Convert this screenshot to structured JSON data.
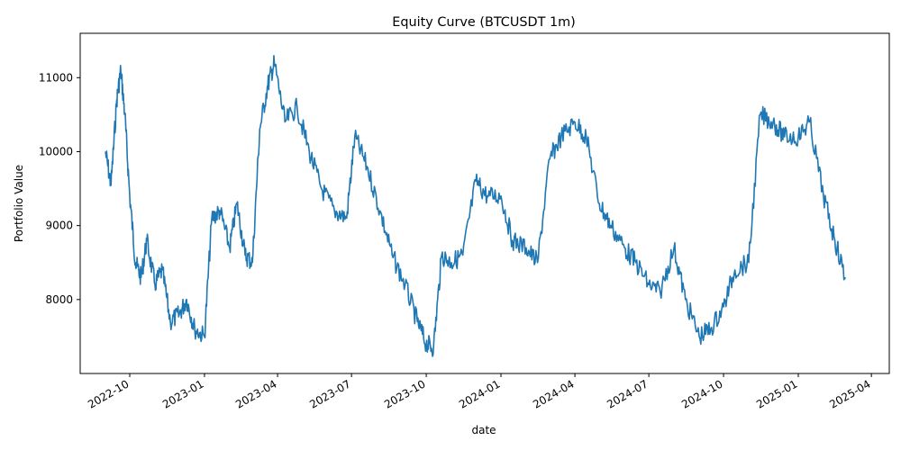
{
  "chart_data": {
    "type": "line",
    "title": "Equity Curve (BTCUSDT 1m)",
    "xlabel": "date",
    "ylabel": "Portfolio Value",
    "grid": false,
    "legend": "none",
    "color": "#1f77b4",
    "xlim": [
      "2022-08-01",
      "2025-04-23"
    ],
    "ylim": [
      7000,
      11600
    ],
    "x_ticks": [
      "2022-10",
      "2023-01",
      "2023-04",
      "2023-07",
      "2023-10",
      "2024-01",
      "2024-04",
      "2024-07",
      "2024-10",
      "2025-01",
      "2025-04"
    ],
    "y_ticks": [
      8000,
      9000,
      10000,
      11000
    ],
    "y_tick_labels": [
      "8000",
      "9000",
      "10000",
      "11000"
    ],
    "series": [
      {
        "x": [
          "2022-09-01",
          "2022-09-08",
          "2022-09-15",
          "2022-09-20",
          "2022-09-25",
          "2022-10-01",
          "2022-10-08",
          "2022-10-15",
          "2022-10-22",
          "2022-11-01",
          "2022-11-10",
          "2022-11-20",
          "2022-12-01",
          "2022-12-10",
          "2022-12-20",
          "2023-01-01",
          "2023-01-10",
          "2023-01-20",
          "2023-02-01",
          "2023-02-10",
          "2023-02-20",
          "2023-03-01",
          "2023-03-10",
          "2023-03-20",
          "2023-03-28",
          "2023-04-10",
          "2023-04-25",
          "2023-05-10",
          "2023-05-25",
          "2023-06-10",
          "2023-06-25",
          "2023-07-05",
          "2023-07-20",
          "2023-08-05",
          "2023-08-20",
          "2023-09-05",
          "2023-09-20",
          "2023-10-01",
          "2023-10-10",
          "2023-10-20",
          "2023-11-01",
          "2023-11-15",
          "2023-12-01",
          "2023-12-15",
          "2024-01-01",
          "2024-01-15",
          "2024-02-01",
          "2024-02-15",
          "2024-03-01",
          "2024-03-15",
          "2024-04-01",
          "2024-04-15",
          "2024-05-01",
          "2024-05-15",
          "2024-06-01",
          "2024-06-15",
          "2024-07-01",
          "2024-07-15",
          "2024-08-01",
          "2024-08-15",
          "2024-09-01",
          "2024-09-15",
          "2024-10-01",
          "2024-10-15",
          "2024-11-01",
          "2024-11-15",
          "2024-12-01",
          "2024-12-15",
          "2025-01-01",
          "2025-01-15",
          "2025-02-01",
          "2025-02-15",
          "2025-02-28"
        ],
        "y": [
          10000,
          9550,
          10700,
          11100,
          10500,
          9400,
          8500,
          8300,
          8800,
          8200,
          8400,
          7700,
          7800,
          8000,
          7600,
          7500,
          9100,
          9200,
          8700,
          9300,
          8600,
          8500,
          10300,
          10900,
          11200,
          10400,
          10600,
          10000,
          9500,
          9200,
          9100,
          10200,
          9800,
          9200,
          8600,
          8200,
          7700,
          7400,
          7350,
          8600,
          8500,
          8600,
          9600,
          9400,
          9400,
          8800,
          8700,
          8500,
          9900,
          10200,
          10400,
          10200,
          9300,
          9000,
          8700,
          8500,
          8200,
          8100,
          8700,
          8000,
          7500,
          7600,
          7900,
          8400,
          8500,
          10500,
          10400,
          10200,
          10200,
          10400,
          9400,
          8800,
          8300
        ]
      }
    ]
  }
}
